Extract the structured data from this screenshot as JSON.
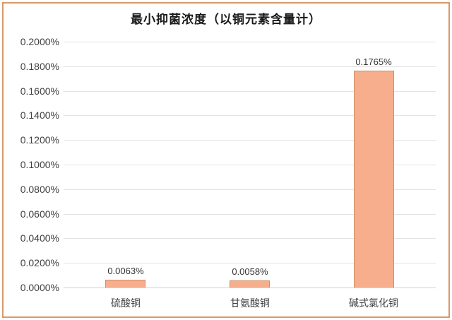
{
  "chart_data": {
    "type": "bar",
    "title": "最小抑菌浓度（以铜元素含量计）",
    "categories": [
      "硫酸铜",
      "甘氨酸铜",
      "碱式氯化铜"
    ],
    "values": [
      0.0063,
      0.0058,
      0.1765
    ],
    "value_labels": [
      "0.0063%",
      "0.0058%",
      "0.1765%"
    ],
    "xlabel": "",
    "ylabel": "",
    "ylim": [
      0,
      0.2
    ],
    "ytick_labels": [
      "0.2000%",
      "0.1800%",
      "0.1600%",
      "0.1400%",
      "0.1200%",
      "0.1000%",
      "0.0800%",
      "0.0600%",
      "0.0400%",
      "0.0200%",
      "0.0000%"
    ],
    "grid": true,
    "legend": false
  },
  "colors": {
    "frame_border": "#D89A6A",
    "bar_fill": "#F6AE8D",
    "bar_border": "#D28E63",
    "gridline": "#E3E3E3",
    "baseline": "#D2D2D2",
    "text": "#3F3F3F"
  }
}
